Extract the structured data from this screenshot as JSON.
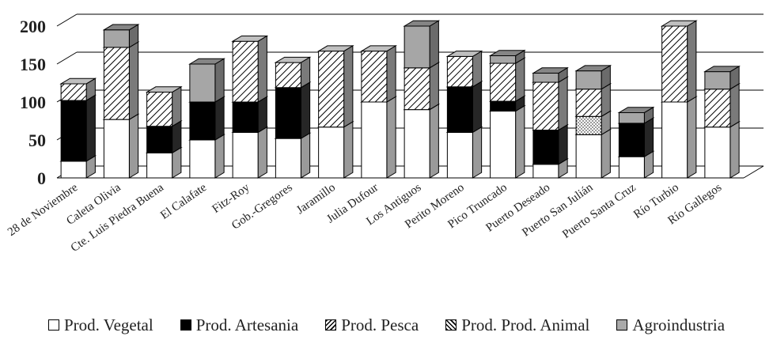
{
  "chart_data": {
    "type": "bar",
    "subtype": "stacked-3d",
    "categories": [
      "28 de Noviembre",
      "Caleta Olivia",
      "Cte. Luis Piedra Buena",
      "El Calafate",
      "Fitz-Roy",
      "Gob.-Gregores",
      "Jaramillo",
      "Julia Dufour",
      "Los Antiguos",
      "Perito Moreno",
      "Pico Truncado",
      "Puerto Deseado",
      "Puerto San Julián",
      "Puerto Santa Cruz",
      "Río Turbio",
      "Río Gallegos"
    ],
    "series": [
      {
        "name": "Prod. Vegetal",
        "values": [
          22,
          77,
          33,
          50,
          60,
          52,
          67,
          100,
          90,
          60,
          88,
          18,
          57,
          28,
          100,
          67
        ]
      },
      {
        "name": "Prod. Artesania",
        "values": [
          80,
          0,
          35,
          50,
          40,
          67,
          0,
          0,
          0,
          60,
          13,
          45,
          0,
          44,
          0,
          0
        ]
      },
      {
        "name": "Prod. Pesca",
        "values": [
          0,
          0,
          0,
          0,
          0,
          0,
          0,
          0,
          0,
          0,
          0,
          0,
          24,
          0,
          0,
          0
        ]
      },
      {
        "name": "Prod. Prod. Animal",
        "values": [
          22,
          95,
          45,
          0,
          80,
          33,
          100,
          67,
          55,
          40,
          50,
          63,
          36,
          0,
          100,
          50
        ]
      },
      {
        "name": "Agroindustria",
        "values": [
          0,
          23,
          0,
          50,
          0,
          0,
          0,
          0,
          55,
          0,
          10,
          12,
          24,
          14,
          0,
          23
        ]
      }
    ],
    "ylim": [
      0,
      200
    ],
    "yticks": [
      0,
      50,
      100,
      150,
      200
    ],
    "grid": true,
    "legend_position": "bottom",
    "colors": {
      "vegetal": "#ffffff",
      "artesania": "#000000",
      "agro": "#a6a6a6",
      "stroke": "#000000"
    }
  }
}
